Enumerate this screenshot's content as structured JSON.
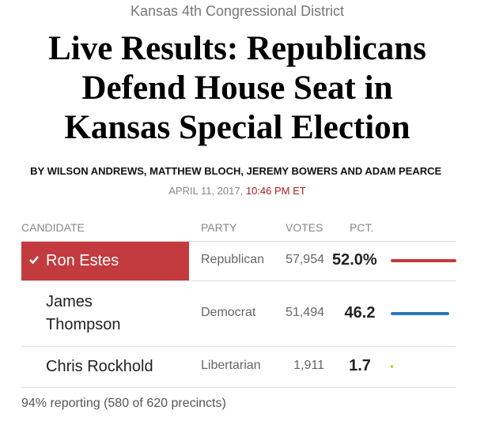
{
  "kicker": "Kansas 4th Congressional District",
  "headline": [
    "Live Results: Republicans",
    "Defend House Seat in",
    "Kansas Special Election"
  ],
  "byline": "BY WILSON ANDREWS, MATTHEW BLOCH, JEREMY BOWERS AND ADAM PEARCE",
  "date": "APRIL 11, 2017,",
  "time": "10:46 PM ET",
  "table": {
    "headers": [
      "CANDIDATE",
      "PARTY",
      "VOTES",
      "PCT."
    ],
    "rows": [
      {
        "candidate": "Ron Estes",
        "party": "Republican",
        "votes": "57,954",
        "pct": 52.0,
        "pct_label": "52.0%",
        "color": "#c33b3f",
        "winner": true
      },
      {
        "candidate": "James Thompson",
        "party": "Democrat",
        "votes": "51,494",
        "pct": 46.2,
        "pct_label": "46.2",
        "color": "#2b7ab8",
        "winner": false
      },
      {
        "candidate": "Chris Rockhold",
        "party": "Libertarian",
        "votes": "1,911",
        "pct": 1.7,
        "pct_label": "1.7",
        "color": "#c9c233",
        "winner": false
      }
    ]
  },
  "footer": "94% reporting (580 of 620 precincts)"
}
